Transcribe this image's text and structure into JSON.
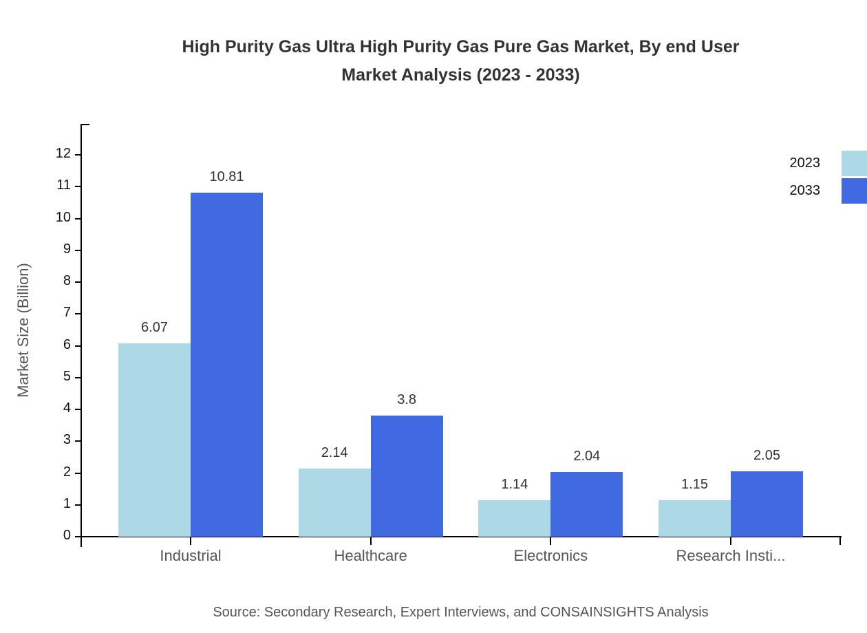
{
  "title": {
    "line1": "High Purity Gas Ultra High Purity Gas Pure Gas Market, By end User",
    "line2": "Market Analysis (2023 - 2033)"
  },
  "source": "Source: Secondary Research, Expert Interviews, and CONSAINSIGHTS Analysis",
  "colors": {
    "series_2023": "#ADD8E6",
    "series_2033": "#4169E1",
    "axis": "#000000",
    "title_text": "#333333",
    "tick_text": "#111111",
    "muted_text": "#555555",
    "value_text": "#333333"
  },
  "chart_data": {
    "type": "bar",
    "title": "High Purity Gas Ultra High Purity Gas Pure Gas Market, By end User Market Analysis (2023 - 2033)",
    "categories": [
      "Industrial",
      "Healthcare",
      "Electronics",
      "Research Insti..."
    ],
    "series": [
      {
        "name": "2023",
        "color": "#ADD8E6",
        "values": [
          6.07,
          2.14,
          1.14,
          1.15
        ]
      },
      {
        "name": "2033",
        "color": "#4169E1",
        "values": [
          10.81,
          3.8,
          2.04,
          2.05
        ]
      }
    ],
    "xlabel": "",
    "ylabel": "Market Size (Billion)",
    "ylim": [
      0,
      13
    ],
    "yticks": [
      0,
      1,
      2,
      3,
      4,
      5,
      6,
      7,
      8,
      9,
      10,
      11,
      12
    ],
    "grid": false,
    "legend_position": "top-right",
    "value_labels": true
  }
}
